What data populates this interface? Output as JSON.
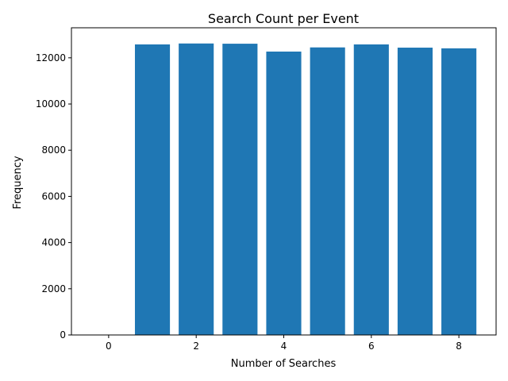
{
  "chart_data": {
    "type": "bar",
    "title": "Search Count per Event",
    "xlabel": "Number of Searches",
    "ylabel": "Frequency",
    "x": [
      1,
      2,
      3,
      4,
      5,
      6,
      7,
      8
    ],
    "values": [
      12580,
      12620,
      12610,
      12270,
      12450,
      12580,
      12440,
      12410
    ],
    "xlim": [
      -0.85,
      8.85
    ],
    "ylim": [
      0,
      13300
    ],
    "xticks": [
      0,
      2,
      4,
      6,
      8
    ],
    "yticks": [
      0,
      2000,
      4000,
      6000,
      8000,
      10000,
      12000
    ],
    "bar_color": "#1f77b4",
    "grid": false,
    "legend": "none"
  }
}
